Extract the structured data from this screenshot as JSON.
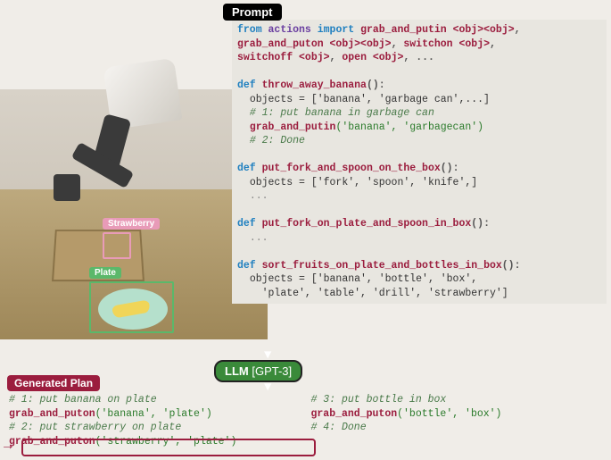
{
  "badges": {
    "prompt": "Prompt",
    "llm_label": "LLM",
    "llm_model": "[GPT-3]",
    "generated": "Generated Plan"
  },
  "labels": {
    "strawberry": "Strawberry",
    "plate": "Plate"
  },
  "colors": {
    "prompt_bg": "#000000",
    "llm_bg": "#3a8a3a",
    "generated_bg": "#9b1d3e",
    "strawberry": "#e89bb8",
    "plate": "#5bb86a",
    "highlight": "#9b1d3e",
    "code_bg": "#e8e6e0"
  },
  "code": {
    "import_from": "from",
    "import_module": "actions",
    "import_kw": "import",
    "fn_grab_putin": "grab_and_putin",
    "fn_grab_puton": "grab_and_puton",
    "fn_switchon": "switchon",
    "fn_switchoff": "switchoff",
    "fn_open": "open",
    "obj_ph": "<obj>",
    "ellipsis": "...",
    "def_kw": "def",
    "fn1": "throw_away_banana",
    "fn1_objects": "objects = ['banana', 'garbage can',...]",
    "fn1_c1": "# 1: put banana in garbage can",
    "fn1_call": "grab_and_putin",
    "fn1_args": "('banana', 'garbagecan')",
    "fn1_c2": "# 2: Done",
    "fn2": "put_fork_and_spoon_on_the_box",
    "fn2_objects": "objects = ['fork', 'spoon', 'knife',]",
    "fn3": "put_fork_on_plate_and_spoon_in_box",
    "fn4": "sort_fruits_on_plate_and_bottles_in_box",
    "fn4_objs1": "objects = ['banana', 'bottle', 'box',",
    "fn4_objs2": "  'plate', 'table', 'drill', 'strawberry']"
  },
  "generated": {
    "left": {
      "c1": "# 1: put banana on plate",
      "call1_fn": "grab_and_puton",
      "call1_args": "('banana', 'plate')",
      "c2": "# 2: put strawberry on plate",
      "call2_fn": "grab_and_puton",
      "call2_args": "('strawberry', 'plate')"
    },
    "right": {
      "c3": "# 3: put bottle in box",
      "call3_fn": "grab_and_puton",
      "call3_args": "('bottle', 'box')",
      "c4": "# 4: Done"
    }
  }
}
